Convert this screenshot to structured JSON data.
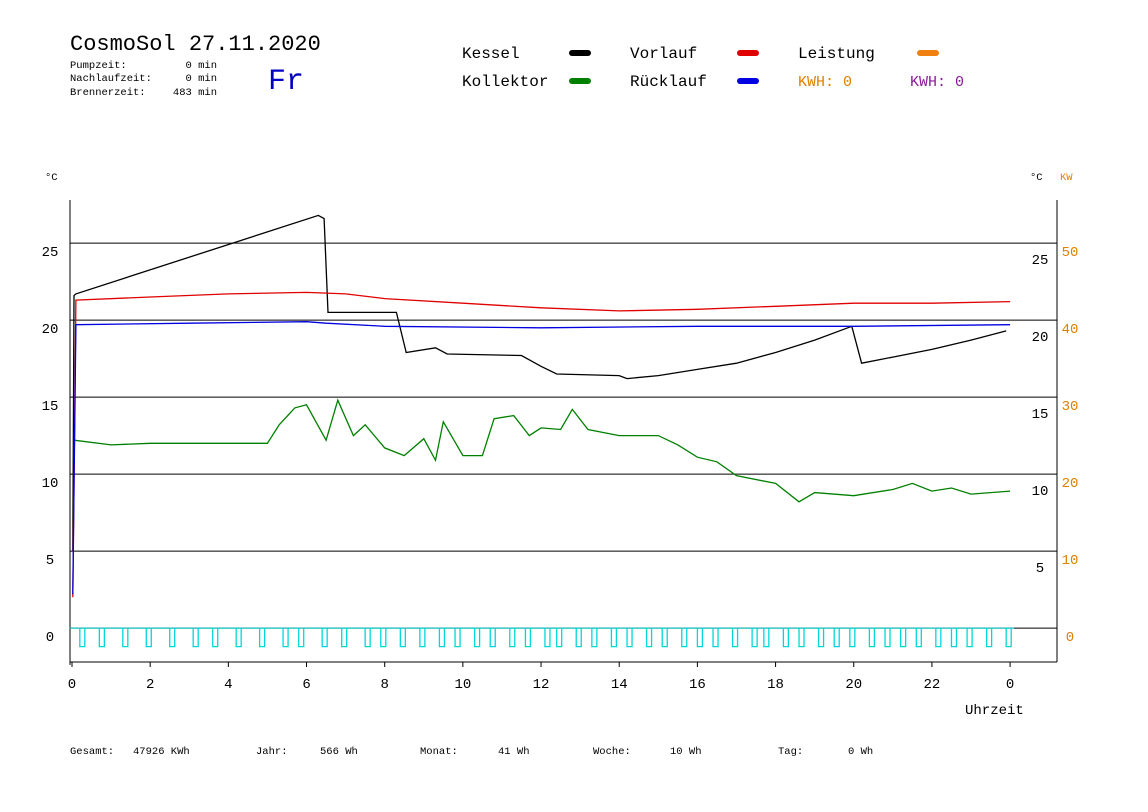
{
  "header": {
    "title": "CosmoSol 27.11.2020",
    "day": "Fr",
    "stats": [
      {
        "label": "Pumpzeit:",
        "value": "0 min"
      },
      {
        "label": "Nachlaufzeit:",
        "value": "0 min"
      },
      {
        "label": "Brennerzeit:",
        "value": "483 min"
      }
    ],
    "kwh": [
      "KWH: 0",
      "KWH: 0"
    ]
  },
  "chart_data": {
    "type": "line",
    "y_unit": "°C",
    "y2_unit": "°C",
    "y3_unit": "KW",
    "x_label": "Uhrzeit",
    "xlim": [
      0,
      25.2
    ],
    "xticks": [
      0,
      2,
      4,
      6,
      8,
      10,
      12,
      14,
      16,
      18,
      20,
      22,
      {
        "value": 24,
        "label": "0"
      }
    ],
    "ylim": [
      -2.2,
      27.8
    ],
    "yticks": [
      0,
      5,
      10,
      15,
      20,
      25
    ],
    "y2lim": [
      -1.7,
      28.3
    ],
    "y2ticks": [
      5,
      10,
      15,
      20,
      25
    ],
    "y3lim": [
      -4.4,
      55.6
    ],
    "y3ticks": [
      0,
      10,
      20,
      30,
      40,
      50
    ],
    "grid": true,
    "series": [
      {
        "name": "Kessel",
        "color": "#000000",
        "x": [
          0.02,
          0.05,
          0.1,
          6.3,
          6.45,
          6.55,
          8.3,
          8.55,
          9.3,
          9.6,
          11.5,
          12,
          12.4,
          14,
          14.2,
          15,
          16,
          17,
          18,
          19,
          19.95,
          20.2,
          21,
          22,
          23,
          23.9
        ],
        "values": [
          5.0,
          21.6,
          21.7,
          26.8,
          26.6,
          20.5,
          20.5,
          17.9,
          18.2,
          17.8,
          17.7,
          17.0,
          16.5,
          16.4,
          16.2,
          16.4,
          16.8,
          17.2,
          17.9,
          18.7,
          19.6,
          17.2,
          17.6,
          18.1,
          18.7,
          19.3
        ]
      },
      {
        "name": "Vorlauf",
        "color": "#e00000",
        "x": [
          0.02,
          0.1,
          2,
          4,
          6,
          7,
          8,
          10,
          12,
          14,
          16,
          18,
          20,
          22,
          24
        ],
        "values": [
          2.0,
          21.3,
          21.5,
          21.7,
          21.8,
          21.7,
          21.4,
          21.1,
          20.8,
          20.6,
          20.7,
          20.9,
          21.1,
          21.1,
          21.2
        ]
      },
      {
        "name": "Leistung",
        "color": "#f08010",
        "x": [],
        "values": []
      },
      {
        "name": "Kollektor",
        "color": "#008000",
        "x": [
          0.05,
          1,
          2,
          5,
          5.3,
          5.7,
          6,
          6.5,
          6.8,
          7.2,
          7.5,
          8,
          8.5,
          9,
          9.3,
          9.5,
          10,
          10.5,
          10.8,
          11.3,
          11.7,
          12,
          12.5,
          12.8,
          13.2,
          14,
          15,
          15.5,
          16,
          16.5,
          17,
          18,
          18.6,
          19,
          20,
          21,
          21.5,
          22,
          22.5,
          23,
          24
        ],
        "values": [
          12.2,
          11.9,
          12.0,
          12.0,
          13.2,
          14.3,
          14.5,
          12.2,
          14.8,
          12.5,
          13.2,
          11.7,
          11.2,
          12.3,
          10.9,
          13.4,
          11.2,
          11.2,
          13.6,
          13.8,
          12.5,
          13.0,
          12.9,
          14.2,
          12.9,
          12.5,
          12.5,
          11.9,
          11.1,
          10.8,
          9.9,
          9.4,
          8.2,
          8.8,
          8.6,
          9.0,
          9.4,
          8.9,
          9.1,
          8.7,
          8.9
        ]
      },
      {
        "name": "Rücklauf",
        "color": "#0000e0",
        "x": [
          0.02,
          0.1,
          3,
          6,
          6.5,
          8,
          12,
          16,
          20,
          24
        ],
        "values": [
          2.2,
          19.7,
          19.8,
          19.9,
          19.8,
          19.6,
          19.5,
          19.6,
          19.6,
          19.7
        ]
      }
    ],
    "pulses": {
      "color": "#00d8d8",
      "x": [
        0.2,
        0.7,
        1.3,
        1.9,
        2.5,
        3.1,
        3.6,
        4.2,
        4.8,
        5.4,
        5.8,
        6.4,
        6.9,
        7.5,
        7.9,
        8.4,
        8.9,
        9.4,
        9.8,
        10.3,
        10.7,
        11.2,
        11.6,
        12.1,
        12.4,
        12.9,
        13.3,
        13.8,
        14.2,
        14.7,
        15.1,
        15.6,
        16.0,
        16.4,
        16.9,
        17.4,
        17.7,
        18.2,
        18.6,
        19.1,
        19.5,
        19.9,
        20.4,
        20.8,
        21.2,
        21.6,
        22.1,
        22.5,
        22.9,
        23.4,
        23.9
      ],
      "values": [
        -1.2,
        -1.2,
        -1.2,
        -1.2,
        -1.2,
        -1.2,
        -1.2,
        -1.2,
        -1.2,
        -1.2,
        -1.2,
        -1.2,
        -1.2,
        -1.2,
        -1.2,
        -1.2,
        -1.2,
        -1.2,
        -1.2,
        -1.2,
        -1.2,
        -1.2,
        -1.2,
        -1.2,
        -1.2,
        -1.2,
        -1.2,
        -1.2,
        -1.2,
        -1.2,
        -1.2,
        -1.2,
        -1.2,
        -1.2,
        -1.2,
        -1.2,
        -1.2,
        -1.2,
        -1.2,
        -1.2,
        -1.2,
        -1.2,
        -1.2,
        -1.2,
        -1.2,
        -1.2,
        -1.2,
        -1.2,
        -1.2,
        -1.2,
        -1.2
      ]
    }
  },
  "footer": [
    {
      "label": "Gesamt:",
      "value": "47926 KWh"
    },
    {
      "label": "Jahr:",
      "value": "566 Wh"
    },
    {
      "label": "Monat:",
      "value": "41 Wh"
    },
    {
      "label": "Woche:",
      "value": "10 Wh"
    },
    {
      "label": "Tag:",
      "value": "0 Wh"
    }
  ]
}
